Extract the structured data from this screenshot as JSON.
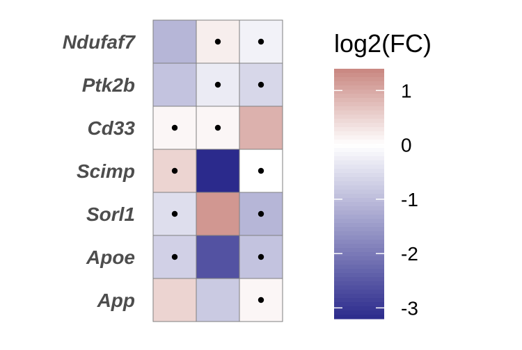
{
  "chart_data": {
    "type": "heatmap",
    "rows": [
      "Ndufaf7",
      "Ptk2b",
      "Cd33",
      "Scimp",
      "Sorl1",
      "Apoe",
      "App"
    ],
    "columns": [
      "",
      "",
      ""
    ],
    "values": [
      [
        -1.1,
        0.2,
        -0.2
      ],
      [
        -0.9,
        -0.3,
        -0.6
      ],
      [
        0.1,
        0.1,
        0.9
      ],
      [
        0.5,
        -3.2,
        0.0
      ],
      [
        -0.5,
        1.2,
        -1.1
      ],
      [
        -0.7,
        -2.6,
        -0.9
      ],
      [
        0.5,
        -0.8,
        0.1
      ]
    ],
    "significant": [
      [
        false,
        true,
        true
      ],
      [
        false,
        true,
        true
      ],
      [
        true,
        true,
        false
      ],
      [
        true,
        false,
        true
      ],
      [
        true,
        false,
        true
      ],
      [
        true,
        false,
        true
      ],
      [
        false,
        false,
        true
      ]
    ],
    "legend": {
      "title": "log2(FC)",
      "min": -3.2,
      "max": 1.4,
      "ticks": [
        1,
        0,
        -1,
        -2,
        -3
      ],
      "tick_labels": [
        "1",
        "0",
        "-1",
        "-2",
        "-3"
      ],
      "position": "right"
    },
    "colors": {
      "low": "#2b2a8c",
      "mid": "#ffffff",
      "high": "#c9867f",
      "cell_border": "#7f7f7f",
      "dot": "#000000"
    }
  }
}
